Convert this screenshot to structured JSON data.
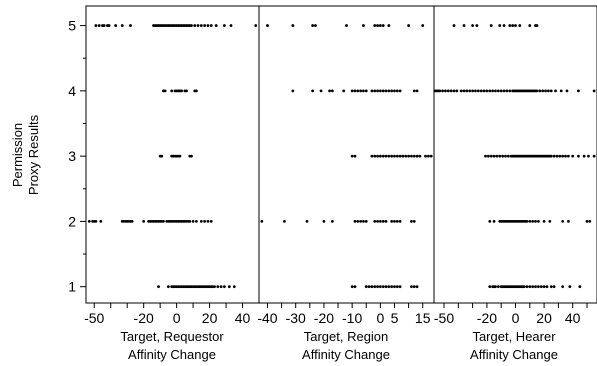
{
  "chart_data": {
    "type": "scatter",
    "ylabel": [
      "Permission",
      "Proxy Results"
    ],
    "y_ticks": [
      1,
      2,
      3,
      4,
      5
    ],
    "ylim": [
      0.75,
      5.3
    ],
    "panels": [
      {
        "xlabel": [
          "Target, Requestor",
          "Affinity Change"
        ],
        "xlim": [
          -55,
          50
        ],
        "x_ticks": [
          -50,
          -40,
          -30,
          -20,
          -10,
          0,
          10,
          20,
          30,
          40
        ],
        "x_tick_labels": [
          {
            "value": -50,
            "label": "-50"
          },
          {
            "value": -20,
            "label": "-20"
          },
          {
            "value": 0,
            "label": "0"
          },
          {
            "value": 20,
            "label": "20"
          },
          {
            "value": 40,
            "label": "40"
          }
        ],
        "rows": [
          {
            "y": 1,
            "x": [
              -11,
              -5,
              -3,
              -2,
              -1,
              0,
              1,
              2,
              3,
              4,
              5,
              6,
              7,
              8,
              9,
              10,
              11,
              12,
              13,
              14,
              15,
              16,
              17,
              18,
              19,
              20,
              21,
              22,
              23,
              25,
              27,
              29,
              32,
              35
            ]
          },
          {
            "y": 2,
            "x": [
              -53,
              -51,
              -50,
              -49,
              -46,
              -33,
              -32,
              -31,
              -30,
              -29,
              -28,
              -27,
              -20,
              -17,
              -16,
              -15,
              -14,
              -13,
              -12,
              -11,
              -10,
              -9,
              -8,
              -6,
              -5,
              -4,
              -3,
              -2,
              -1,
              0,
              1,
              2,
              3,
              4,
              5,
              6,
              7,
              8,
              10,
              12,
              15,
              17,
              19,
              21
            ]
          },
          {
            "y": 3,
            "x": [
              -10,
              -9,
              -3,
              -2,
              -1,
              0,
              1,
              2,
              8,
              9
            ]
          },
          {
            "y": 4,
            "x": [
              -8,
              -7,
              -3,
              -1,
              0,
              1,
              2,
              3,
              5,
              6,
              11,
              12
            ]
          },
          {
            "y": 5,
            "x": [
              -49,
              -47,
              -45,
              -44,
              -42,
              -41,
              -37,
              -33,
              -28,
              -14,
              -13,
              -12,
              -11,
              -10,
              -9,
              -8,
              -7,
              -6,
              -5,
              -4,
              -3,
              -2,
              -1,
              0,
              1,
              2,
              3,
              4,
              5,
              6,
              7,
              8,
              9,
              11,
              13,
              15,
              17,
              19,
              21,
              24,
              29,
              33,
              48
            ]
          }
        ]
      },
      {
        "xlabel": [
          "Target, Region",
          "Affinity Change"
        ],
        "xlim": [
          -43,
          19
        ],
        "x_ticks": [
          -40,
          -35,
          -30,
          -25,
          -20,
          -15,
          -10,
          -5,
          0,
          5,
          10,
          15
        ],
        "x_tick_labels": [
          {
            "value": -40,
            "label": "-40"
          },
          {
            "value": -30,
            "label": "-30"
          },
          {
            "value": -20,
            "label": "-20"
          },
          {
            "value": -10,
            "label": "-10"
          },
          {
            "value": 0,
            "label": "0"
          },
          {
            "value": 5,
            "label": "5"
          },
          {
            "value": 15,
            "label": "15"
          }
        ],
        "rows": [
          {
            "y": 1,
            "x": [
              -10,
              -9,
              -5,
              -4,
              -3,
              -2,
              -1,
              0,
              1,
              2,
              3,
              4,
              5,
              6,
              7,
              11,
              12,
              13
            ]
          },
          {
            "y": 2,
            "x": [
              -42,
              -34,
              -26,
              -20,
              -17,
              -9,
              -8,
              -7,
              -6,
              -5,
              -2,
              -1,
              0,
              1,
              2,
              4,
              5,
              6,
              7,
              11,
              12
            ]
          },
          {
            "y": 3,
            "x": [
              -10,
              -9,
              -3,
              -2,
              -1,
              0,
              1,
              2,
              3,
              4,
              5,
              6,
              7,
              8,
              9,
              10,
              11,
              12,
              13,
              14,
              16,
              17,
              18
            ]
          },
          {
            "y": 4,
            "x": [
              -31,
              -24,
              -21,
              -18,
              -17,
              -13,
              -10,
              -9,
              -8,
              -7,
              -6,
              -5,
              -3,
              -2,
              -1,
              0,
              1,
              2,
              3,
              4,
              5,
              6,
              7,
              12,
              13
            ]
          },
          {
            "y": 5,
            "x": [
              -40,
              -31,
              -24,
              -23,
              -12,
              -6,
              -2,
              -1,
              0,
              1,
              3,
              10,
              15
            ]
          }
        ]
      },
      {
        "xlabel": [
          "Target, Hearer",
          "Affinity Change"
        ],
        "xlim": [
          -57,
          57
        ],
        "x_ticks": [
          -50,
          -40,
          -30,
          -20,
          -10,
          0,
          10,
          20,
          30,
          40,
          50
        ],
        "x_tick_labels": [
          {
            "value": -50,
            "label": "-50"
          },
          {
            "value": -20,
            "label": "-20"
          },
          {
            "value": 0,
            "label": "0"
          },
          {
            "value": 20,
            "label": "20"
          },
          {
            "value": 40,
            "label": "40"
          }
        ],
        "rows": [
          {
            "y": 1,
            "x": [
              -18,
              -16,
              -15,
              -14,
              -12,
              -10,
              -9,
              -8,
              -7,
              -6,
              -5,
              -4,
              -3,
              -2,
              -1,
              0,
              1,
              2,
              3,
              4,
              5,
              6,
              8,
              10,
              12,
              14,
              16,
              18,
              20,
              22,
              25,
              27,
              33,
              38,
              45
            ]
          },
          {
            "y": 2,
            "x": [
              -18,
              -15,
              -11,
              -10,
              -9,
              -8,
              -7,
              -6,
              -5,
              -4,
              -3,
              -2,
              -1,
              0,
              1,
              2,
              3,
              4,
              5,
              6,
              7,
              8,
              10,
              12,
              14,
              16,
              20,
              24,
              33,
              37,
              50,
              52
            ]
          },
          {
            "y": 3,
            "x": [
              -21,
              -19,
              -17,
              -15,
              -13,
              -11,
              -9,
              -7,
              -5,
              -3,
              -2,
              -1,
              0,
              1,
              2,
              3,
              4,
              5,
              6,
              7,
              8,
              9,
              10,
              11,
              12,
              13,
              14,
              15,
              16,
              17,
              18,
              19,
              20,
              21,
              22,
              23,
              24,
              25,
              27,
              29,
              31,
              33,
              35,
              37,
              40,
              44,
              48,
              51,
              55
            ]
          },
          {
            "y": 4,
            "x": [
              -56,
              -55,
              -54,
              -53,
              -51,
              -49,
              -47,
              -45,
              -43,
              -41,
              -38,
              -36,
              -34,
              -32,
              -30,
              -28,
              -26,
              -24,
              -22,
              -20,
              -18,
              -16,
              -14,
              -12,
              -10,
              -8,
              -6,
              -4,
              -2,
              -1,
              0,
              1,
              2,
              3,
              4,
              5,
              6,
              7,
              8,
              9,
              10,
              11,
              12,
              13,
              14,
              15,
              17,
              19,
              21,
              23,
              25,
              28,
              32,
              36,
              44,
              55
            ]
          },
          {
            "y": 5,
            "x": [
              -43,
              -36,
              -30,
              -27,
              -17,
              -11,
              -8,
              -4,
              -2,
              0,
              3,
              10,
              14,
              15
            ]
          }
        ]
      }
    ]
  }
}
